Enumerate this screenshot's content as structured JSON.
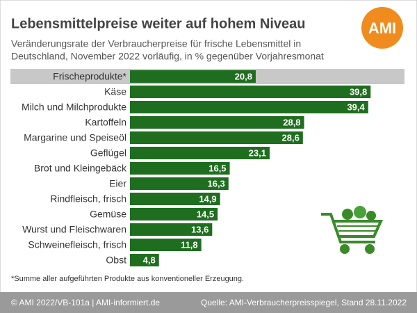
{
  "chart_data": {
    "type": "bar",
    "title": "Lebensmittelpreise weiter auf hohem Niveau",
    "subtitle": [
      "Veränderungsrate der Verbraucherpreise für frische Lebensmittel in",
      "Deutschland, November 2022 vorläufig, in % gegenüber Vorjahresmonat"
    ],
    "categories": [
      "Frischeprodukte*",
      "Käse",
      "Milch und Milchprodukte",
      "Kartoffeln",
      "Margarine und Speiseöl",
      "Geflügel",
      "Brot und Kleingebäck",
      "Eier",
      "Rindfleisch, frisch",
      "Gemüse",
      "Wurst und Fleischwaren",
      "Schweinefleisch, frisch",
      "Obst"
    ],
    "values": [
      20.8,
      39.8,
      39.4,
      28.8,
      28.6,
      23.1,
      16.5,
      16.3,
      14.9,
      14.5,
      13.6,
      11.8,
      4.8
    ],
    "value_labels": [
      "20,8",
      "39,8",
      "39,4",
      "28,8",
      "28,6",
      "23,1",
      "16,5",
      "16,3",
      "14,9",
      "14,5",
      "13,6",
      "11,8",
      "4,8"
    ],
    "color": "#1f6e1f"
  },
  "logo": "AMI",
  "footnote": "*Summe aller aufgeführten Produkte aus konventioneller Erzeugung.",
  "footer": {
    "left": "© AMI 2022/VB-101a | AMI-informiert.de",
    "right": "Quelle: AMI-Verbraucherpreisspiegel, Stand 28.11.2022"
  }
}
